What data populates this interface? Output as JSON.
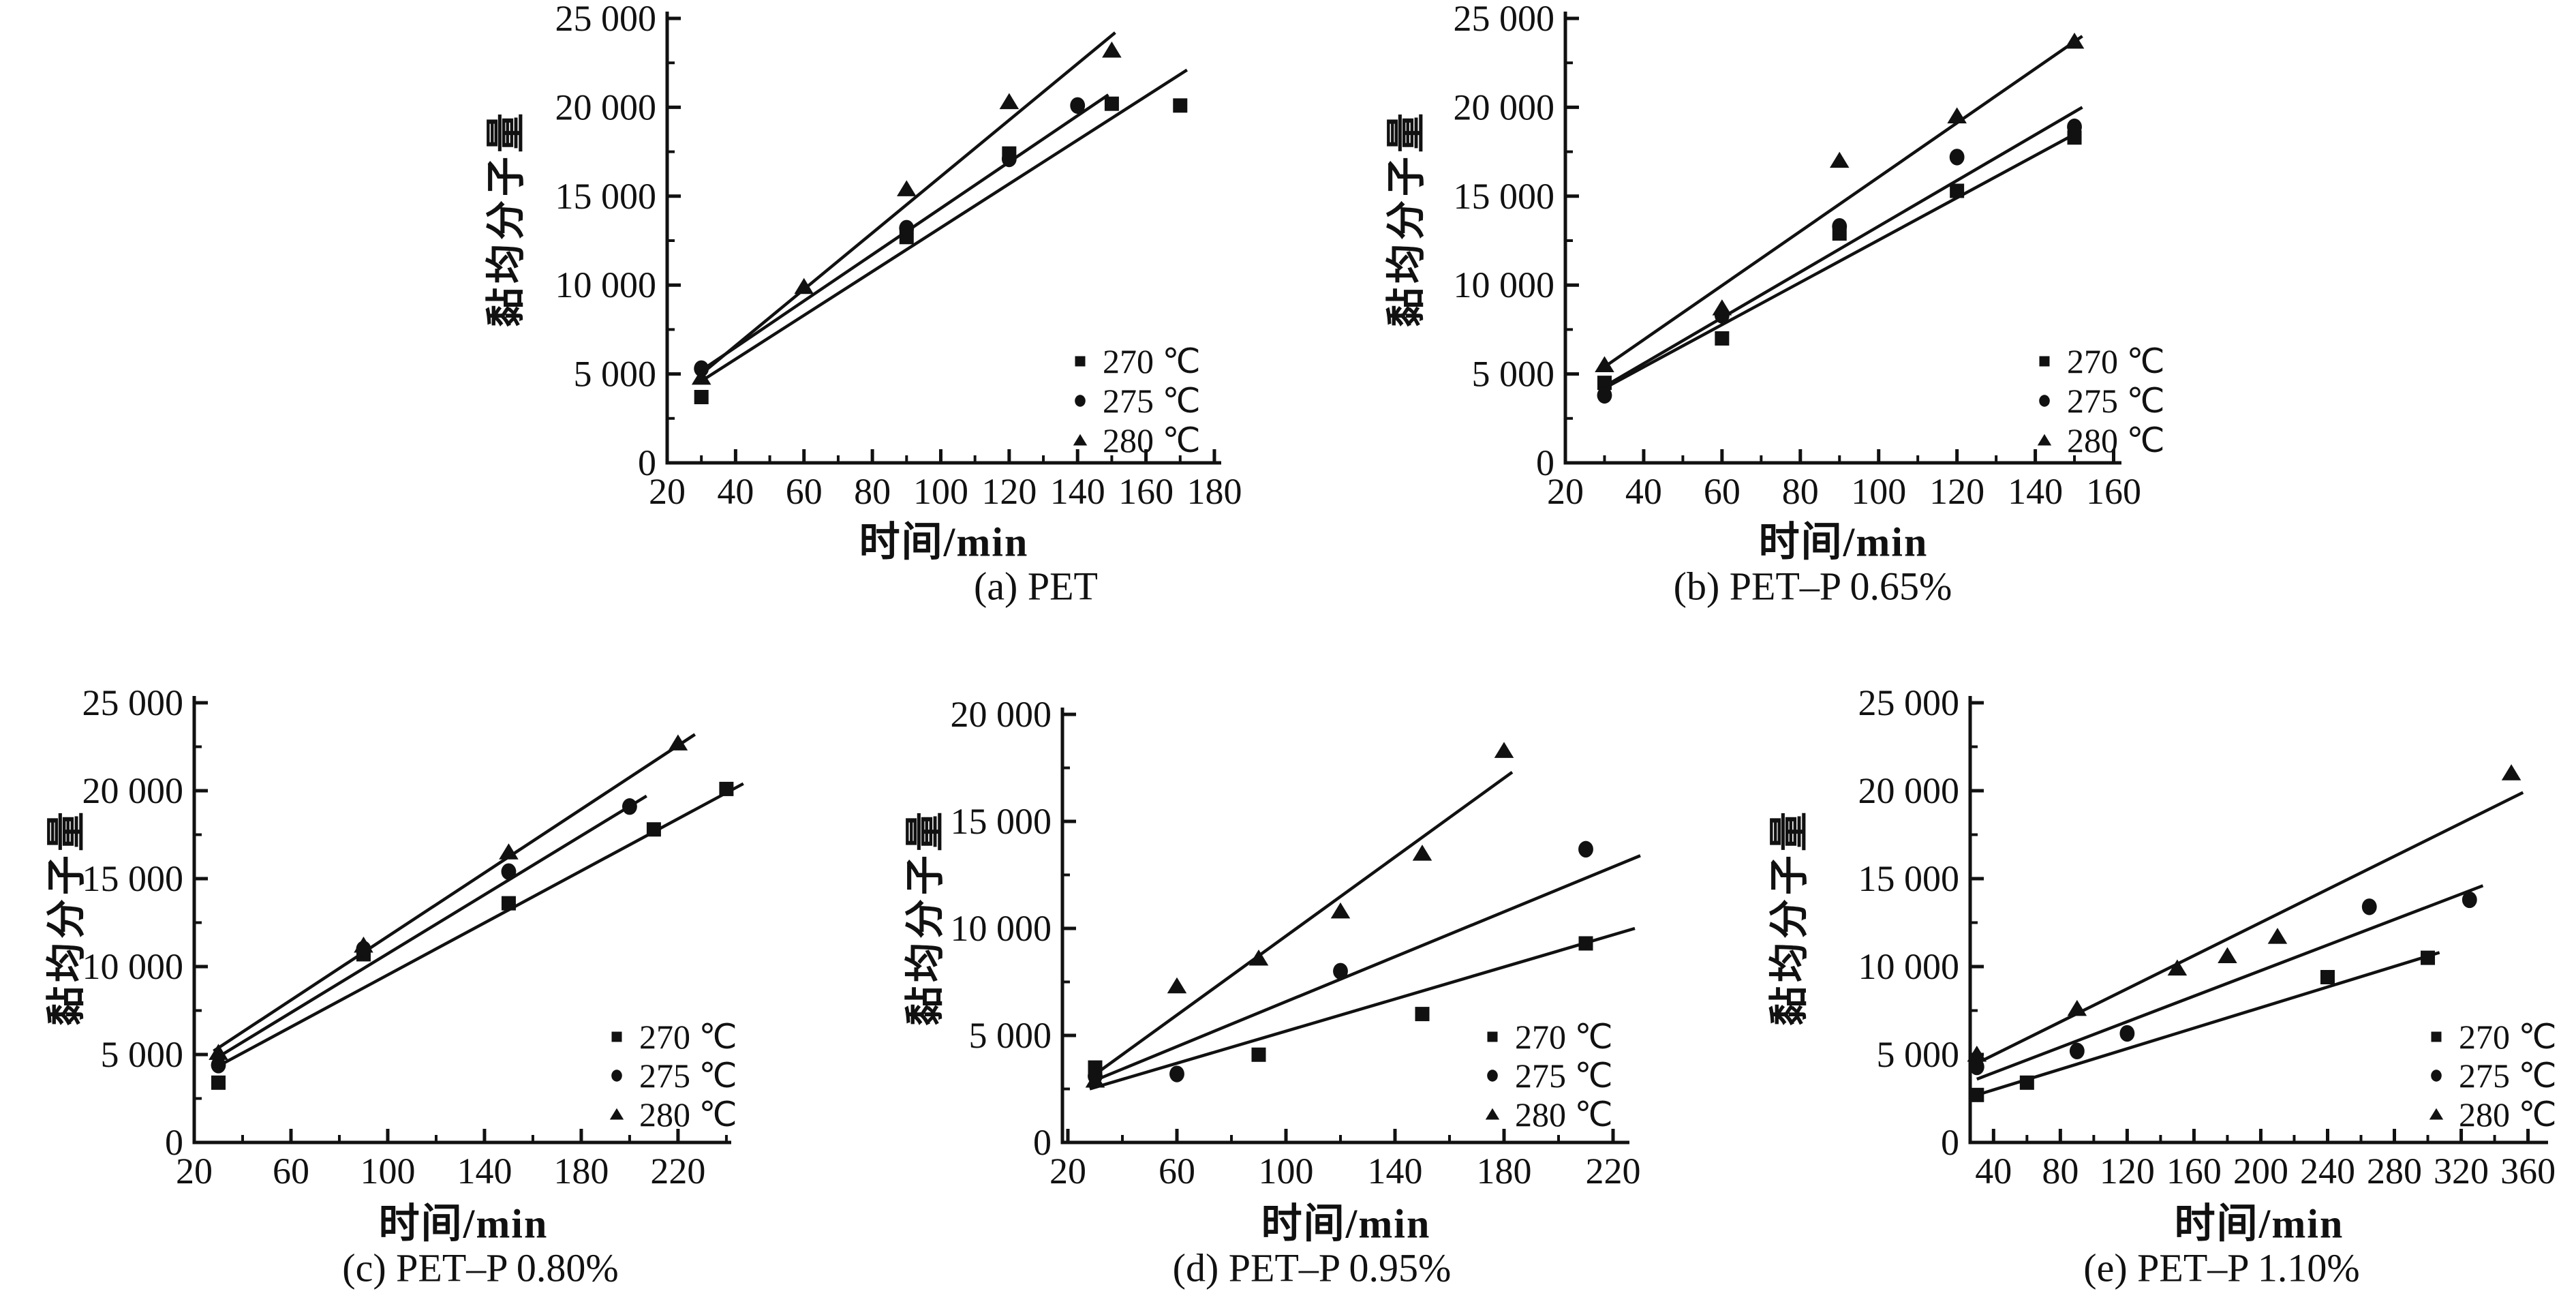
{
  "figure": {
    "background": "#ffffff",
    "ink": "#111111",
    "description": "Viscosity-average molecular weight vs time for PET and PET-P at three temperatures"
  },
  "chart_data": [
    {
      "id": "a",
      "type": "scatter",
      "caption": "(a) PET",
      "xlabel": "时间/min",
      "ylabel": "黏均分子量",
      "xlim": [
        20,
        182
      ],
      "ylim": [
        0,
        25000
      ],
      "xticks": [
        20,
        40,
        60,
        80,
        100,
        120,
        140,
        160,
        180
      ],
      "xtick_labels": [
        "20",
        "40",
        "60",
        "80",
        "100",
        "120",
        "140",
        "160",
        "180"
      ],
      "x_minor_step": 10,
      "yticks": [
        0,
        5000,
        10000,
        15000,
        20000,
        25000
      ],
      "ytick_labels": [
        "0",
        "5 000",
        "10 000",
        "15 000",
        "20 000",
        "25 000"
      ],
      "y_minor_step": 2500,
      "grid": false,
      "legend_position": "lower right",
      "series": [
        {
          "name": "270 ℃",
          "marker": "square",
          "points": [
            [
              30,
              3700
            ],
            [
              90,
              12700
            ],
            [
              120,
              17400
            ],
            [
              150,
              20200
            ],
            [
              170,
              20100
            ]
          ],
          "fit_line": [
            [
              30,
              4600
            ],
            [
              172,
              22100
            ]
          ]
        },
        {
          "name": "275 ℃",
          "marker": "circle",
          "points": [
            [
              30,
              5300
            ],
            [
              90,
              13200
            ],
            [
              120,
              17100
            ],
            [
              140,
              20100
            ]
          ],
          "fit_line": [
            [
              30,
              5200
            ],
            [
              149,
              20700
            ]
          ]
        },
        {
          "name": "280 ℃",
          "marker": "triangle",
          "points": [
            [
              30,
              4800
            ],
            [
              60,
              9900
            ],
            [
              90,
              15400
            ],
            [
              120,
              20300
            ],
            [
              150,
              23200
            ]
          ],
          "fit_line": [
            [
              30,
              5000
            ],
            [
              151,
              24200
            ]
          ]
        }
      ]
    },
    {
      "id": "b",
      "type": "scatter",
      "caption": "(b) PET–P 0.65%",
      "xlabel": "时间/min",
      "ylabel": "黏均分子量",
      "xlim": [
        20,
        162
      ],
      "ylim": [
        0,
        25000
      ],
      "xticks": [
        20,
        40,
        60,
        80,
        100,
        120,
        140,
        160
      ],
      "xtick_labels": [
        "20",
        "40",
        "60",
        "80",
        "100",
        "120",
        "140",
        "160"
      ],
      "x_minor_step": 10,
      "yticks": [
        0,
        5000,
        10000,
        15000,
        20000,
        25000
      ],
      "ytick_labels": [
        "0",
        "5 000",
        "10 000",
        "15 000",
        "20 000",
        "25 000"
      ],
      "y_minor_step": 2500,
      "grid": false,
      "legend_position": "lower right",
      "series": [
        {
          "name": "270 ℃",
          "marker": "square",
          "points": [
            [
              30,
              4500
            ],
            [
              60,
              7000
            ],
            [
              90,
              12900
            ],
            [
              120,
              15300
            ],
            [
              150,
              18300
            ]
          ],
          "fit_line": [
            [
              30,
              4200
            ],
            [
              151,
              18600
            ]
          ]
        },
        {
          "name": "275 ℃",
          "marker": "circle",
          "points": [
            [
              30,
              3800
            ],
            [
              60,
              8300
            ],
            [
              90,
              13300
            ],
            [
              120,
              17200
            ],
            [
              150,
              18900
            ]
          ],
          "fit_line": [
            [
              30,
              4300
            ],
            [
              152,
              20000
            ]
          ]
        },
        {
          "name": "280 ℃",
          "marker": "triangle",
          "points": [
            [
              30,
              5500
            ],
            [
              60,
              8700
            ],
            [
              90,
              17000
            ],
            [
              120,
              19500
            ],
            [
              150,
              23700
            ]
          ],
          "fit_line": [
            [
              30,
              5400
            ],
            [
              152,
              24000
            ]
          ]
        }
      ]
    },
    {
      "id": "c",
      "type": "scatter",
      "caption": "(c) PET–P 0.80%",
      "xlabel": "时间/min",
      "ylabel": "黏均分子量",
      "xlim": [
        20,
        242
      ],
      "ylim": [
        0,
        25000
      ],
      "xticks": [
        20,
        60,
        100,
        140,
        180,
        220
      ],
      "xtick_labels": [
        "20",
        "60",
        "100",
        "140",
        "180",
        "220"
      ],
      "x_minor_step": 20,
      "yticks": [
        0,
        5000,
        10000,
        15000,
        20000,
        25000
      ],
      "ytick_labels": [
        "0",
        "5 000",
        "10 000",
        "15 000",
        "20 000",
        "25 000"
      ],
      "y_minor_step": 2500,
      "grid": false,
      "legend_position": "lower right",
      "series": [
        {
          "name": "270 ℃",
          "marker": "square",
          "points": [
            [
              30,
              3400
            ],
            [
              90,
              10700
            ],
            [
              150,
              13600
            ],
            [
              210,
              17800
            ],
            [
              240,
              20100
            ]
          ],
          "fit_line": [
            [
              28,
              4200
            ],
            [
              247,
              20400
            ]
          ]
        },
        {
          "name": "275 ℃",
          "marker": "circle",
          "points": [
            [
              30,
              4400
            ],
            [
              90,
              11000
            ],
            [
              150,
              15400
            ],
            [
              200,
              19100
            ]
          ],
          "fit_line": [
            [
              28,
              4700
            ],
            [
              207,
              19700
            ]
          ]
        },
        {
          "name": "280 ℃",
          "marker": "triangle",
          "points": [
            [
              30,
              5100
            ],
            [
              90,
              11200
            ],
            [
              150,
              16500
            ],
            [
              220,
              22700
            ]
          ],
          "fit_line": [
            [
              28,
              5200
            ],
            [
              227,
              23200
            ]
          ]
        }
      ]
    },
    {
      "id": "d",
      "type": "scatter",
      "caption": "(d) PET–P 0.95%",
      "xlabel": "时间/min",
      "ylabel": "黏均分子量",
      "xlim": [
        18,
        226
      ],
      "ylim": [
        0,
        20000
      ],
      "xticks": [
        20,
        60,
        100,
        140,
        180,
        220
      ],
      "xtick_labels": [
        "20",
        "60",
        "100",
        "140",
        "180",
        "220"
      ],
      "x_minor_step": 20,
      "yticks": [
        0,
        5000,
        10000,
        15000,
        20000
      ],
      "ytick_labels": [
        "0",
        "5 000",
        "10 000",
        "15 000",
        "20 000"
      ],
      "y_minor_step": 2500,
      "grid": false,
      "legend_position": "lower right",
      "series": [
        {
          "name": "270 ℃",
          "marker": "square",
          "points": [
            [
              30,
              3500
            ],
            [
              90,
              4100
            ],
            [
              150,
              6000
            ],
            [
              210,
              9300
            ]
          ],
          "fit_line": [
            [
              28,
              2500
            ],
            [
              228,
              10000
            ]
          ]
        },
        {
          "name": "275 ℃",
          "marker": "circle",
          "points": [
            [
              30,
              3100
            ],
            [
              60,
              3200
            ],
            [
              120,
              8000
            ],
            [
              210,
              13700
            ]
          ],
          "fit_line": [
            [
              28,
              2800
            ],
            [
              230,
              13400
            ]
          ]
        },
        {
          "name": "280 ℃",
          "marker": "triangle",
          "points": [
            [
              30,
              2900
            ],
            [
              60,
              7300
            ],
            [
              90,
              8600
            ],
            [
              120,
              10800
            ],
            [
              150,
              13500
            ],
            [
              180,
              18300
            ]
          ],
          "fit_line": [
            [
              28,
              3000
            ],
            [
              183,
              17300
            ]
          ]
        }
      ]
    },
    {
      "id": "e",
      "type": "scatter",
      "caption": "(e) PET–P 1.10%",
      "xlabel": "时间/min",
      "ylabel": "黏均分子量",
      "xlim": [
        26,
        372
      ],
      "ylim": [
        0,
        25000
      ],
      "xticks": [
        40,
        80,
        120,
        160,
        200,
        240,
        280,
        320,
        360
      ],
      "xtick_labels": [
        "40",
        "80",
        "120",
        "160",
        "200",
        "240",
        "280",
        "320",
        "360"
      ],
      "x_minor_step": 20,
      "yticks": [
        0,
        5000,
        10000,
        15000,
        20000,
        25000
      ],
      "ytick_labels": [
        "0",
        "5 000",
        "10 000",
        "15 000",
        "20 000",
        "25 000"
      ],
      "y_minor_step": 2500,
      "grid": false,
      "legend_position": "lower right",
      "series": [
        {
          "name": "270 ℃",
          "marker": "square",
          "points": [
            [
              30,
              2700
            ],
            [
              60,
              3400
            ],
            [
              240,
              9400
            ],
            [
              300,
              10500
            ]
          ],
          "fit_line": [
            [
              30,
              2700
            ],
            [
              307,
              10800
            ]
          ]
        },
        {
          "name": "275 ℃",
          "marker": "circle",
          "points": [
            [
              30,
              4300
            ],
            [
              90,
              5200
            ],
            [
              120,
              6200
            ],
            [
              265,
              13400
            ],
            [
              325,
              13800
            ]
          ],
          "fit_line": [
            [
              30,
              3600
            ],
            [
              333,
              14600
            ]
          ]
        },
        {
          "name": "280 ℃",
          "marker": "triangle",
          "points": [
            [
              30,
              5000
            ],
            [
              90,
              7600
            ],
            [
              150,
              9900
            ],
            [
              180,
              10600
            ],
            [
              210,
              11700
            ],
            [
              350,
              21000
            ]
          ],
          "fit_line": [
            [
              30,
              4500
            ],
            [
              357,
              19900
            ]
          ]
        }
      ]
    }
  ]
}
